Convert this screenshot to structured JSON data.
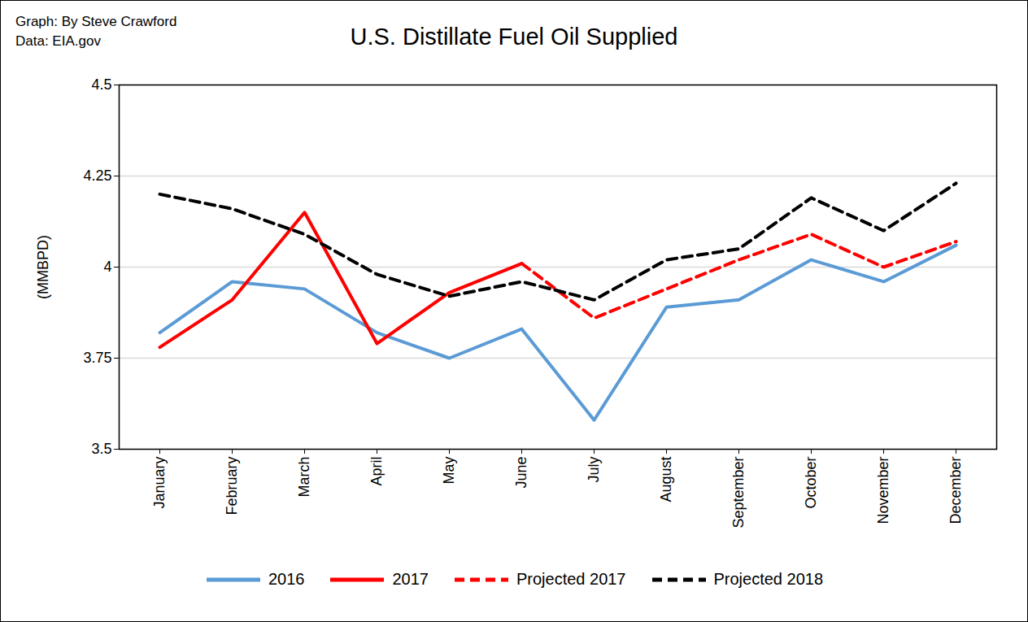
{
  "chart_data": {
    "type": "line",
    "title": "U.S. Distillate Fuel Oil Supplied",
    "annotations": [
      "Graph: By Steve Crawford",
      "Data: EIA.gov"
    ],
    "y_label": "(MMBPD)",
    "categories": [
      "January",
      "February",
      "March",
      "April",
      "May",
      "June",
      "July",
      "August",
      "September",
      "October",
      "November",
      "December"
    ],
    "series": [
      {
        "name": "2016",
        "color": "#5b9bd5",
        "line_style": "solid",
        "values": [
          3.82,
          3.96,
          3.94,
          3.82,
          3.75,
          3.83,
          3.58,
          3.89,
          3.91,
          4.02,
          3.96,
          4.06
        ]
      },
      {
        "name": "2017",
        "color": "#ff0000",
        "line_style": "solid",
        "values": [
          3.78,
          3.91,
          4.15,
          3.79,
          3.93,
          4.01,
          null,
          null,
          null,
          null,
          null,
          null
        ]
      },
      {
        "name": "Projected 2017",
        "color": "#ff0000",
        "line_style": "dashed",
        "values": [
          null,
          null,
          null,
          null,
          null,
          4.01,
          3.86,
          3.94,
          4.02,
          4.09,
          4.0,
          4.07
        ]
      },
      {
        "name": "Projected 2018",
        "color": "#000000",
        "line_style": "dashed",
        "values": [
          4.2,
          4.16,
          4.09,
          3.98,
          3.92,
          3.96,
          3.91,
          4.02,
          4.05,
          4.19,
          4.1,
          4.23
        ]
      }
    ],
    "ylim": [
      3.5,
      4.5
    ],
    "yticks": [
      3.5,
      3.75,
      4,
      4.25,
      4.5
    ],
    "grid": true
  }
}
